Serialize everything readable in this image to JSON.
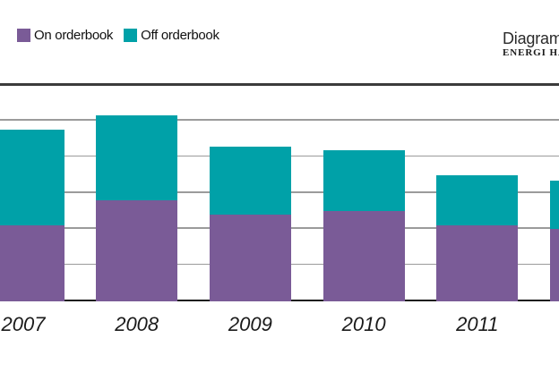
{
  "header": {
    "title": "Diagram",
    "subtitle": "ENERGI HA"
  },
  "legend": {
    "items": [
      {
        "label": "On orderbook",
        "color": "#7a5b97"
      },
      {
        "label": "Off orderbook",
        "color": "#00a1a8"
      }
    ]
  },
  "chart_data": {
    "type": "bar",
    "stacked": true,
    "title": "Diagram",
    "subtitle": "ENERGI HA",
    "xlabel": "",
    "ylabel": "",
    "categories": [
      "2007",
      "2008",
      "2009",
      "2010",
      "2011",
      ""
    ],
    "series": [
      {
        "name": "On orderbook",
        "color": "#7a5b97",
        "values": [
          2.1,
          2.8,
          2.4,
          2.5,
          2.1,
          2.0
        ]
      },
      {
        "name": "Off orderbook",
        "color": "#00a1a8",
        "values": [
          2.65,
          2.35,
          1.9,
          1.7,
          1.4,
          1.35
        ]
      }
    ],
    "totals": [
      4.75,
      5.15,
      4.3,
      4.2,
      3.5,
      3.35
    ],
    "ylim": [
      0,
      6
    ],
    "gridline_step": 1,
    "grid": true,
    "legend_position": "top-left",
    "units": "gridline divisions (no y-axis tick labels visible in image)",
    "clipping": "first bar clipped at left image edge; sixth bar (label not visible) clipped at right image edge; header text clipped at right edge"
  }
}
